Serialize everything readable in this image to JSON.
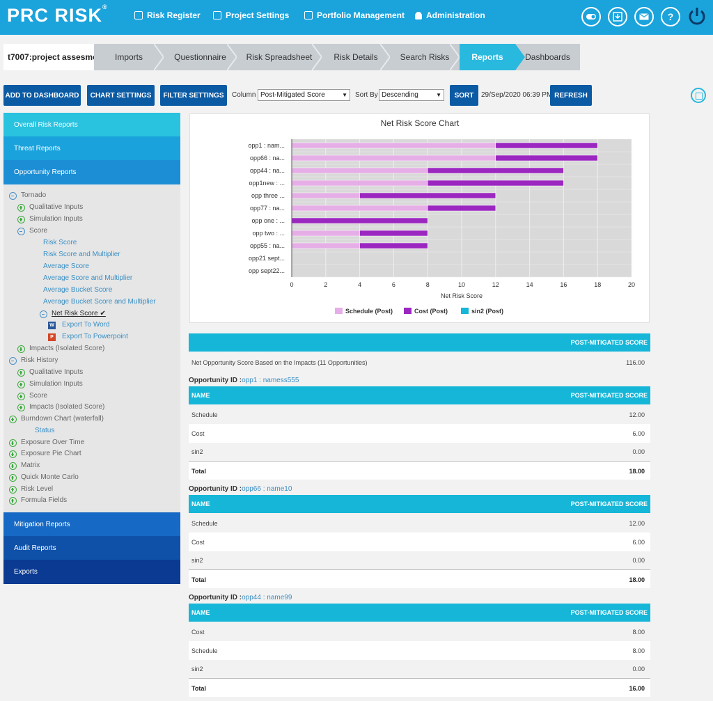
{
  "header": {
    "logo": "PRC RISK",
    "logo_mark": "®",
    "nav": [
      "Risk Register",
      "Project Settings",
      "Portfolio Management",
      "Administration"
    ],
    "icons": [
      "toggle-icon",
      "download-icon",
      "mail-icon",
      "help-icon",
      "power-icon"
    ],
    "help_glyph": "?"
  },
  "breadcrumb": {
    "project": "t7007:project assesmen",
    "items": [
      "Imports",
      "Questionnaire",
      "Risk Spreadsheet",
      "Risk Details",
      "Search Risks",
      "Reports",
      "Dashboards"
    ],
    "active": "Reports"
  },
  "toolbar": {
    "add_to_dashboard": "ADD TO DASHBOARD",
    "chart_settings": "CHART SETTINGS",
    "filter_settings": "FILTER SETTINGS",
    "column_label": "Column",
    "column_value": "Post-Mitigated Score",
    "sortby_label": "Sort By",
    "sortby_value": "Descending",
    "sort": "SORT",
    "timestamp": "29/Sep/2020 06:39 PM",
    "refresh": "REFRESH"
  },
  "sidebar": {
    "sections_top": [
      "Overall Risk Reports",
      "Threat Reports",
      "Opportunity Reports"
    ],
    "tree": [
      {
        "label": "Tornado",
        "toggle": "minus"
      },
      {
        "label": "Qualitative Inputs",
        "toggle": "plus"
      },
      {
        "label": "Simulation Inputs",
        "toggle": "plus"
      },
      {
        "label": "Score",
        "toggle": "minus"
      },
      {
        "label": "Risk Score"
      },
      {
        "label": "Risk Score and Multiplier"
      },
      {
        "label": "Average Score"
      },
      {
        "label": "Average Score and Multiplier"
      },
      {
        "label": "Average Bucket Score"
      },
      {
        "label": "Average Bucket Score and Multiplier"
      },
      {
        "label": "Net Risk Score",
        "toggle": "minus",
        "selected": true
      },
      {
        "label": "Export To Word"
      },
      {
        "label": "Export To Powerpoint"
      },
      {
        "label": "Impacts (Isolated Score)",
        "toggle": "plus"
      },
      {
        "label": "Risk History",
        "toggle": "minus"
      },
      {
        "label": "Qualitative Inputs",
        "toggle": "plus"
      },
      {
        "label": "Simulation Inputs",
        "toggle": "plus"
      },
      {
        "label": "Score",
        "toggle": "plus"
      },
      {
        "label": "Impacts (Isolated Score)",
        "toggle": "plus"
      },
      {
        "label": "Burndown Chart (waterfall)",
        "toggle": "plus"
      },
      {
        "label": "Status"
      },
      {
        "label": "Exposure Over Time",
        "toggle": "plus"
      },
      {
        "label": "Exposure Pie Chart",
        "toggle": "plus"
      },
      {
        "label": "Matrix",
        "toggle": "plus"
      },
      {
        "label": "Quick Monte Carlo",
        "toggle": "plus"
      },
      {
        "label": "Risk Level",
        "toggle": "plus"
      },
      {
        "label": "Formula Fields",
        "toggle": "plus"
      }
    ],
    "sections_bottom": [
      "Mitigation Reports",
      "Audit Reports",
      "Exports"
    ]
  },
  "chart_data": {
    "type": "bar",
    "orientation": "horizontal",
    "stacked": true,
    "title": "Net Risk Score Chart",
    "xlabel": "Net Risk Score",
    "categories": [
      "opp1 : nam...",
      "opp66 : na...",
      "opp44 : na...",
      "opp1new : ...",
      "opp three ...",
      "opp77 : na...",
      "opp one : ...",
      "opp two : ...",
      "opp55 : na...",
      "opp21 sept...",
      "opp sept22..."
    ],
    "series": [
      {
        "name": "Schedule (Post)",
        "color": "#e6aee6",
        "values": [
          12,
          12,
          8,
          8,
          4,
          8,
          0,
          4,
          4,
          0,
          0
        ]
      },
      {
        "name": "Cost (Post)",
        "color": "#9b27c0",
        "values": [
          6,
          6,
          8,
          8,
          8,
          4,
          8,
          4,
          4,
          0,
          0
        ]
      },
      {
        "name": "sin2 (Post)",
        "color": "#16b6d8",
        "values": [
          0,
          0,
          0,
          0,
          0,
          0,
          0,
          0,
          0,
          0,
          0
        ]
      }
    ],
    "xlim": [
      0,
      20
    ],
    "xticks": [
      "0",
      "2",
      "4",
      "6",
      "8",
      "10",
      "12",
      "14",
      "16",
      "18",
      "20"
    ],
    "grid": true,
    "legend": "bottom"
  },
  "report": {
    "summary_header": "POST-MITIGATED SCORE",
    "summary_label": "Net Opportunity Score Based on the Impacts (11 Opportunities)",
    "summary_value": "116.00",
    "id_label": "Opportunity ID :",
    "col_name": "NAME",
    "col_score": "POST-MITIGATED SCORE",
    "total_label": "Total",
    "opportunities": [
      {
        "id": "opp1 : namess555",
        "rows": [
          [
            "Schedule",
            "12.00"
          ],
          [
            "Cost",
            "6.00"
          ],
          [
            "sin2",
            "0.00"
          ]
        ],
        "total": "18.00"
      },
      {
        "id": "opp66 : name10",
        "rows": [
          [
            "Schedule",
            "12.00"
          ],
          [
            "Cost",
            "6.00"
          ],
          [
            "sin2",
            "0.00"
          ]
        ],
        "total": "18.00"
      },
      {
        "id": "opp44 : name99",
        "rows": [
          [
            "Cost",
            "8.00"
          ],
          [
            "Schedule",
            "8.00"
          ],
          [
            "sin2",
            "0.00"
          ]
        ],
        "total": "16.00"
      }
    ]
  }
}
